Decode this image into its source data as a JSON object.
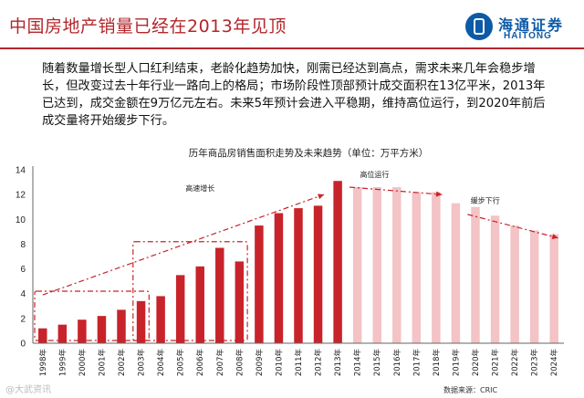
{
  "header": {
    "title": "中国房地产销量已经在2013年见顶",
    "logo_cn": "海通证券",
    "logo_en": "HAITONG"
  },
  "summary": "随着数量增长型人口红利结束，老龄化趋势加快，刚需已经达到高点，需求未来几年会稳步增长，但改变过去十年行业一路向上的格局；市场阶段性顶部预计成交面积在13亿平米，2013年已达到，成交金额在9万亿元左右。未来5年预计会进入平稳期，维持高位运行，到2020年前后成交量将开始缓步下行。",
  "colors": {
    "brand_red": "#b3262b",
    "brand_blue": "#0d5aa7",
    "actual_bar": "#c8232a",
    "forecast_bar": "#f3c3c6"
  },
  "chart_data": {
    "type": "bar",
    "title": "历年商品房销售面积走势及未来趋势（单位：万平方米）",
    "categories": [
      "1998年",
      "1999年",
      "2000年",
      "2001年",
      "2002年",
      "2003年",
      "2004年",
      "2005年",
      "2006年",
      "2007年",
      "2008年",
      "2009年",
      "2010年",
      "2011年",
      "2012年",
      "2013年",
      "2014年",
      "2015年",
      "2016年",
      "2017年",
      "2018年",
      "2019年",
      "2020年",
      "2021年",
      "2022年",
      "2023年",
      "2024年"
    ],
    "series": [
      {
        "values": [
          1.2,
          1.5,
          1.9,
          2.2,
          2.7,
          3.4,
          3.8,
          5.5,
          6.2,
          7.7,
          6.6,
          9.5,
          10.5,
          10.9,
          11.1,
          13.1,
          null,
          null,
          null,
          null,
          null,
          null,
          null,
          null,
          null,
          null,
          null
        ]
      },
      {
        "values": [
          null,
          null,
          null,
          null,
          null,
          null,
          null,
          null,
          null,
          null,
          null,
          null,
          null,
          null,
          null,
          null,
          12.6,
          12.6,
          12.6,
          12.2,
          12.2,
          11.3,
          11.0,
          10.3,
          9.5,
          9.1,
          8.8
        ]
      }
    ],
    "ylim": [
      0,
      14
    ],
    "yticks": [
      0,
      2,
      4,
      6,
      8,
      10,
      12,
      14
    ],
    "grid": false,
    "annotations": [
      "高速增长",
      "高位运行",
      "缓步下行"
    ],
    "source": "数据来源：CRIC"
  },
  "watermark": "@大武资讯"
}
